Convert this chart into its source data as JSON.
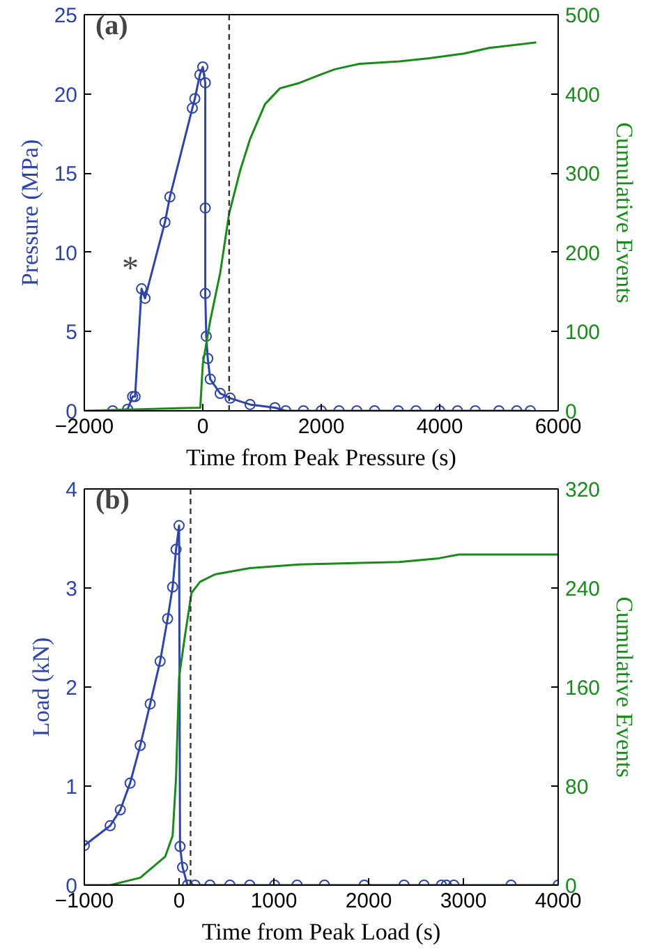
{
  "chart_data": [
    {
      "type": "line",
      "xlabel": "Time from Peak Pressure (s)",
      "ylabel": "Pressure (MPa)",
      "y2label": "Cumulative Events",
      "xlim": [
        -2000,
        6000
      ],
      "xticks": [
        {
          "value": -2000,
          "label": "−2000"
        },
        0,
        2000,
        4000,
        6000
      ],
      "ylim": [
        0,
        25
      ],
      "yticks": [
        0,
        5,
        10,
        15,
        20,
        25
      ],
      "y2lim": [
        0,
        500
      ],
      "y2ticks": [
        0,
        100,
        200,
        300,
        400,
        500
      ],
      "grid": false,
      "annotations": [
        "(a)",
        {
          "text": "*",
          "x": -1034,
          "y": 7.7
        }
      ],
      "ref_lines": [
        {
          "axis": "x",
          "value": 445,
          "line_style": "dashed",
          "color": "#333333"
        }
      ],
      "series": [
        {
          "color": "#2e44a8",
          "marker": "circle",
          "x": [
            -1521,
            -1269,
            -1185,
            -1143,
            -1034,
            -975,
            -639,
            -555,
            -176,
            -134,
            -50,
            0,
            42,
            42,
            42,
            59,
            84,
            126,
            294,
            462,
            798,
            1218,
            1400,
            1700,
            2000,
            2300,
            2600,
            2900,
            3300,
            3600,
            4000,
            4300,
            4600,
            5000,
            5300,
            5530
          ],
          "values": [
            0,
            0.1,
            0.9,
            0.9,
            7.7,
            7.1,
            11.9,
            13.5,
            19.1,
            19.7,
            21.2,
            21.7,
            20.7,
            12.8,
            7.4,
            4.7,
            3.3,
            2.0,
            1.1,
            0.8,
            0.4,
            0.2,
            0,
            0,
            0,
            0,
            0,
            0,
            0,
            0,
            0,
            0,
            0,
            0,
            0,
            0
          ]
        },
        {
          "color": "#1a8a1a",
          "axis": "y2",
          "marker": "none",
          "x": [
            -2000,
            -42,
            0,
            126,
            294,
            445,
            630,
            798,
            1050,
            1303,
            1639,
            1975,
            2227,
            2647,
            3319,
            3824,
            4412,
            4832,
            5630
          ],
          "values": [
            0,
            4,
            59,
            114,
            174,
            249,
            303,
            343,
            387,
            407,
            414,
            424,
            431,
            438,
            441,
            445,
            451,
            458,
            465
          ]
        }
      ]
    },
    {
      "type": "line",
      "xlabel": "Time from Peak Load (s)",
      "ylabel": "Load (kN)",
      "y2label": "Cumulative Events",
      "xlim": [
        -1000,
        4000
      ],
      "xticks": [
        {
          "value": -1000,
          "label": "−1000"
        },
        0,
        1000,
        2000,
        3000,
        4000
      ],
      "ylim": [
        0,
        4
      ],
      "yticks": [
        0,
        1,
        2,
        3,
        4
      ],
      "y2lim": [
        0,
        320
      ],
      "y2ticks": [
        0,
        80,
        160,
        240,
        320
      ],
      "grid": false,
      "annotations": [
        "(b)"
      ],
      "ref_lines": [
        {
          "axis": "x",
          "value": 121,
          "line_style": "dashed",
          "color": "#333333"
        }
      ],
      "series": [
        {
          "color": "#2e44a8",
          "marker": "circle",
          "x": [
            -1000,
            -727,
            -620,
            -517,
            -410,
            -305,
            -200,
            -121,
            -68,
            -32,
            0,
            10,
            37,
            89,
            168,
            326,
            536,
            746,
            1008,
            1245,
            1534,
            1954,
            2374,
            2584,
            2768,
            2820,
            2899,
            3503,
            4000
          ],
          "values": [
            0.4,
            0.6,
            0.76,
            1.03,
            1.41,
            1.83,
            2.26,
            2.69,
            3.01,
            3.39,
            3.63,
            0.39,
            0.18,
            0,
            0,
            0,
            0,
            0,
            0,
            0,
            0,
            0,
            0,
            0,
            0,
            0,
            0,
            0,
            0
          ]
        },
        {
          "color": "#1a8a1a",
          "axis": "y2",
          "marker": "none",
          "x": [
            -1000,
            -727,
            -410,
            -147,
            -68,
            -32,
            0,
            63,
            131,
            221,
            378,
            746,
            1271,
            2321,
            2742,
            2952,
            4000
          ],
          "values": [
            0,
            0,
            6,
            23,
            40,
            87,
            168,
            202,
            236,
            245,
            251,
            256,
            259,
            261,
            264,
            267,
            267
          ]
        }
      ]
    }
  ]
}
